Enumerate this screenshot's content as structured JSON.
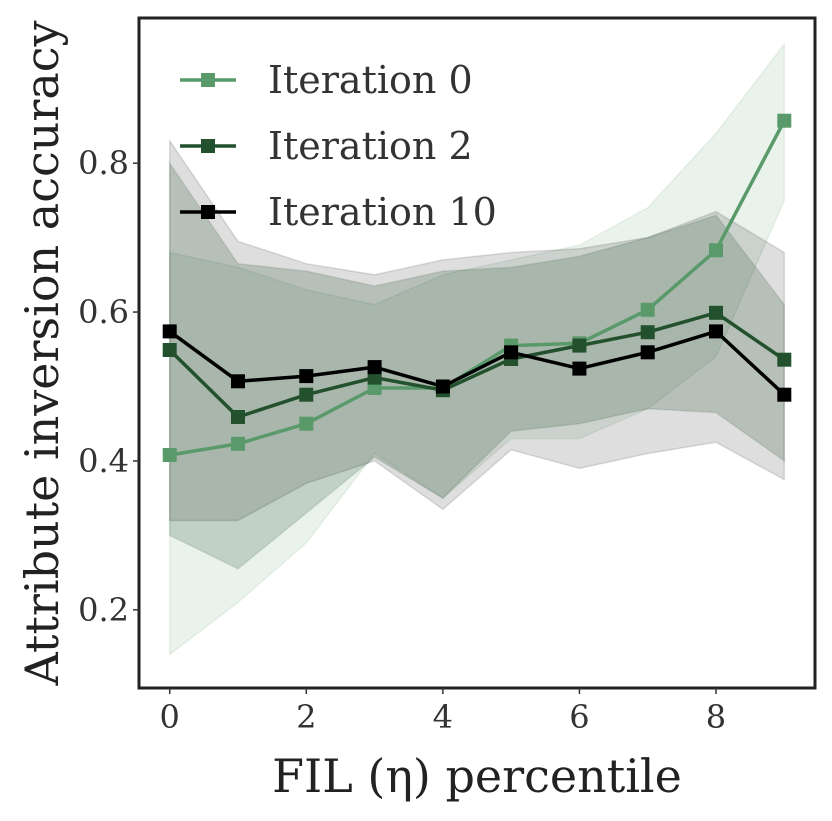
{
  "chart_data": {
    "type": "line",
    "title": "",
    "xlabel": "FIL (η) percentile",
    "ylabel": "Attribute inversion accuracy",
    "xlim": [
      -0.45,
      9.45
    ],
    "ylim": [
      0.095,
      0.995
    ],
    "xticks": [
      0,
      2,
      4,
      6,
      8
    ],
    "xtick_labels": [
      "0",
      "2",
      "4",
      "6",
      "8"
    ],
    "yticks": [
      0.2,
      0.4,
      0.6,
      0.8
    ],
    "ytick_labels": [
      "0.2",
      "0.4",
      "0.6",
      "0.8"
    ],
    "grid": false,
    "legend_position": "top-left",
    "x": [
      0,
      1,
      2,
      3,
      4,
      5,
      6,
      7,
      8,
      9
    ],
    "series": [
      {
        "name": "Iteration 0",
        "color": "#5a9a6a",
        "values": [
          0.408,
          0.423,
          0.45,
          0.498,
          0.498,
          0.555,
          0.558,
          0.603,
          0.683,
          0.857
        ],
        "band_upper": [
          0.68,
          0.66,
          0.63,
          0.61,
          0.65,
          0.67,
          0.69,
          0.74,
          0.84,
          0.96
        ],
        "band_lower": [
          0.14,
          0.21,
          0.29,
          0.41,
          0.35,
          0.43,
          0.43,
          0.47,
          0.54,
          0.75
        ]
      },
      {
        "name": "Iteration 2",
        "color": "#23512d",
        "values": [
          0.549,
          0.459,
          0.489,
          0.512,
          0.495,
          0.537,
          0.555,
          0.573,
          0.599,
          0.536
        ],
        "band_upper": [
          0.8,
          0.665,
          0.655,
          0.635,
          0.655,
          0.66,
          0.675,
          0.7,
          0.73,
          0.61
        ],
        "band_lower": [
          0.3,
          0.255,
          0.33,
          0.405,
          0.35,
          0.44,
          0.45,
          0.47,
          0.465,
          0.4
        ]
      },
      {
        "name": "Iteration 10",
        "color": "#000000",
        "values": [
          0.574,
          0.507,
          0.514,
          0.526,
          0.5,
          0.546,
          0.524,
          0.546,
          0.574,
          0.489
        ],
        "band_upper": [
          0.83,
          0.695,
          0.665,
          0.65,
          0.67,
          0.68,
          0.685,
          0.7,
          0.735,
          0.68
        ],
        "band_lower": [
          0.32,
          0.32,
          0.37,
          0.4,
          0.335,
          0.415,
          0.39,
          0.41,
          0.425,
          0.375
        ]
      }
    ]
  }
}
